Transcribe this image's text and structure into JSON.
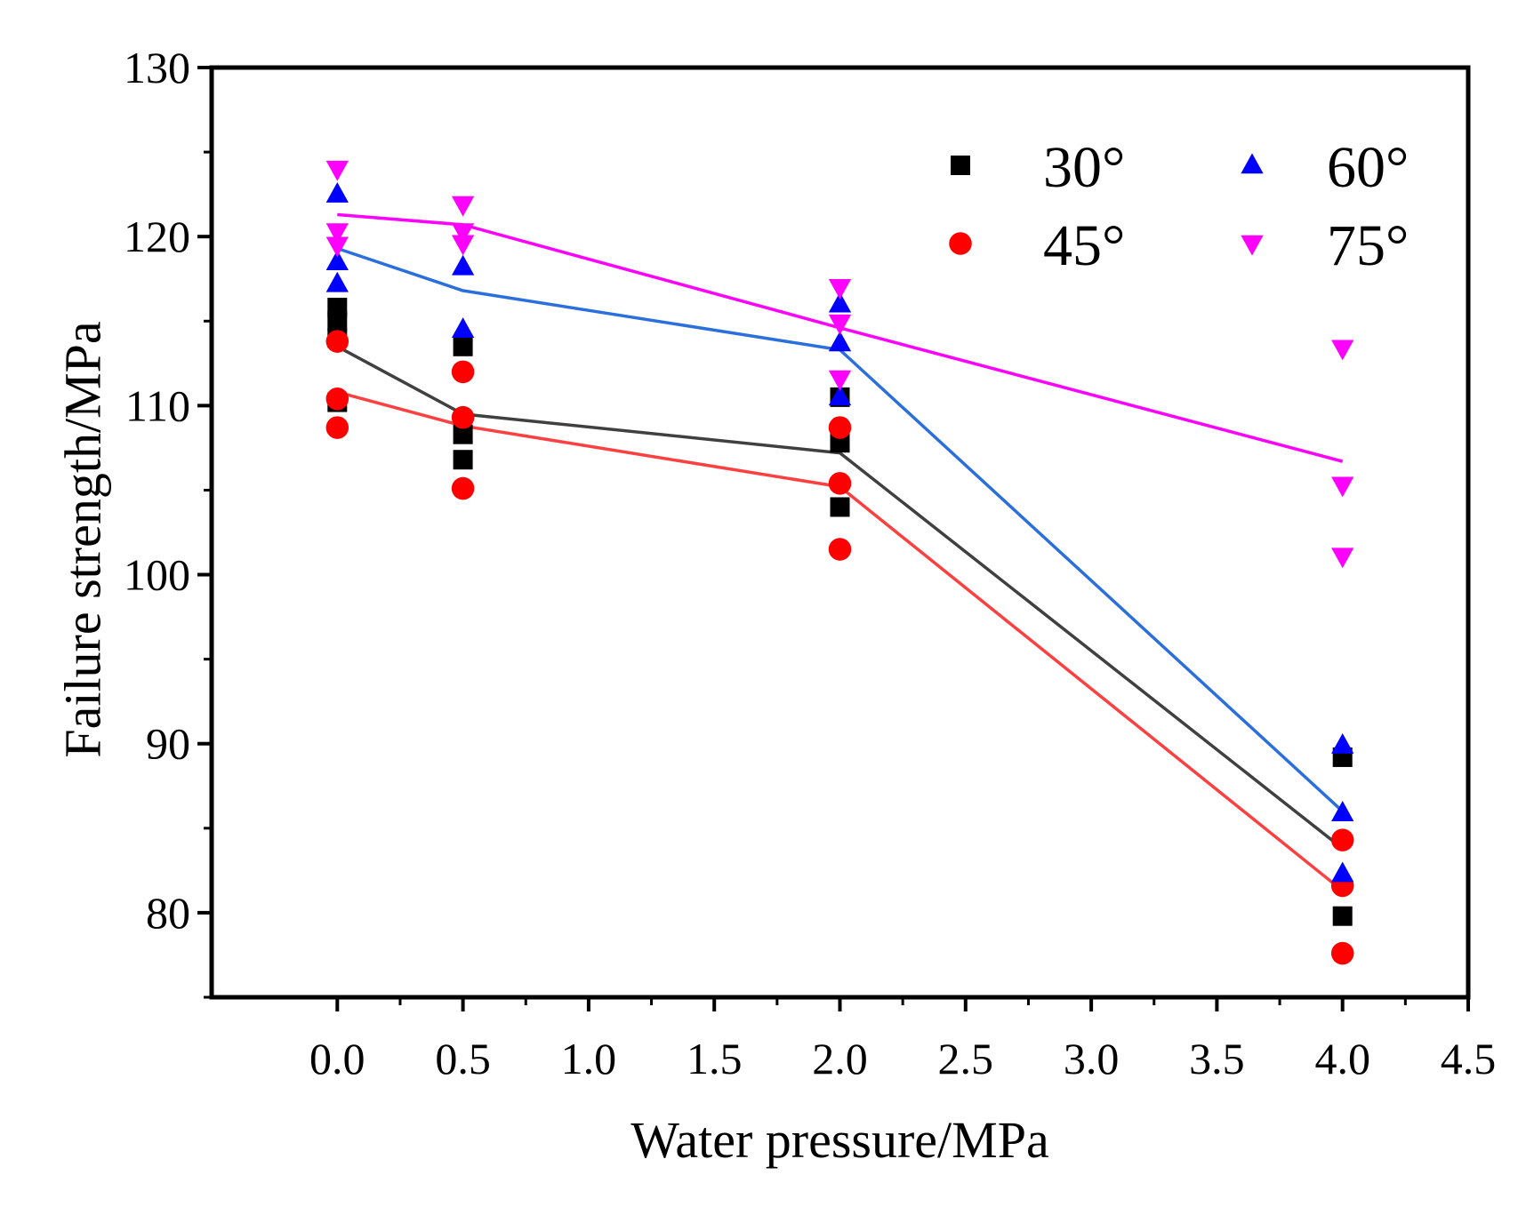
{
  "chart_data": {
    "type": "scatter",
    "title": "",
    "xlabel": "Water pressure/MPa",
    "ylabel": "Failure strength/MPa",
    "xlim": [
      -0.5,
      4.5
    ],
    "ylim": [
      75,
      130
    ],
    "x_ticks": [
      0.0,
      0.5,
      1.0,
      1.5,
      2.0,
      2.5,
      3.0,
      3.5,
      4.0,
      4.5
    ],
    "x_tick_labels": [
      "0.0",
      "0.5",
      "1.0",
      "1.5",
      "2.0",
      "2.5",
      "3.0",
      "3.5",
      "4.0",
      "4.5"
    ],
    "y_ticks": [
      80,
      90,
      100,
      110,
      120,
      130
    ],
    "y_tick_labels": [
      "80",
      "90",
      "100",
      "110",
      "120",
      "130"
    ],
    "grid": false,
    "legend_position": "top-right",
    "series": [
      {
        "name": "30°",
        "marker": "square",
        "color": "#000000",
        "line_color": "#404040",
        "points": [
          [
            0.0,
            115.8
          ],
          [
            0.0,
            115.0
          ],
          [
            0.0,
            114.0
          ],
          [
            0.0,
            110.2
          ],
          [
            0.5,
            113.5
          ],
          [
            0.5,
            108.3
          ],
          [
            0.5,
            106.8
          ],
          [
            2.0,
            110.5
          ],
          [
            2.0,
            107.8
          ],
          [
            2.0,
            104.0
          ],
          [
            4.0,
            89.2
          ],
          [
            4.0,
            79.8
          ]
        ],
        "fit_line": [
          [
            0.0,
            113.5
          ],
          [
            0.5,
            109.5
          ],
          [
            2.0,
            107.2
          ],
          [
            4.0,
            83.8
          ]
        ]
      },
      {
        "name": "45°",
        "marker": "circle",
        "color": "#ff0000",
        "line_color": "#ff4040",
        "points": [
          [
            0.0,
            113.8
          ],
          [
            0.0,
            110.4
          ],
          [
            0.0,
            108.7
          ],
          [
            0.5,
            112.0
          ],
          [
            0.5,
            109.3
          ],
          [
            0.5,
            105.1
          ],
          [
            2.0,
            108.7
          ],
          [
            2.0,
            105.4
          ],
          [
            2.0,
            101.5
          ],
          [
            4.0,
            84.3
          ],
          [
            4.0,
            81.6
          ],
          [
            4.0,
            77.6
          ]
        ],
        "fit_line": [
          [
            0.0,
            110.8
          ],
          [
            0.5,
            108.8
          ],
          [
            2.0,
            105.2
          ],
          [
            4.0,
            81.3
          ]
        ]
      },
      {
        "name": "60°",
        "marker": "triangle-up",
        "color": "#0000ff",
        "line_color": "#2a6fdb",
        "points": [
          [
            0.0,
            122.5
          ],
          [
            0.0,
            118.5
          ],
          [
            0.0,
            117.2
          ],
          [
            0.5,
            118.2
          ],
          [
            0.5,
            114.5
          ],
          [
            2.0,
            116.0
          ],
          [
            2.0,
            113.7
          ],
          [
            2.0,
            110.5
          ],
          [
            4.0,
            89.9
          ],
          [
            4.0,
            85.9
          ],
          [
            4.0,
            82.3
          ]
        ],
        "fit_line": [
          [
            0.0,
            119.3
          ],
          [
            0.5,
            116.8
          ],
          [
            2.0,
            113.3
          ],
          [
            4.0,
            86.0
          ]
        ]
      },
      {
        "name": "75°",
        "marker": "triangle-down",
        "color": "#ff00ff",
        "line_color": "#ff00ff",
        "points": [
          [
            0.0,
            124.0
          ],
          [
            0.0,
            120.3
          ],
          [
            0.0,
            119.5
          ],
          [
            0.5,
            121.9
          ],
          [
            0.5,
            120.3
          ],
          [
            0.5,
            119.6
          ],
          [
            2.0,
            117.0
          ],
          [
            2.0,
            114.9
          ],
          [
            2.0,
            111.6
          ],
          [
            4.0,
            113.4
          ],
          [
            4.0,
            105.3
          ],
          [
            4.0,
            101.1
          ]
        ],
        "fit_line": [
          [
            0.0,
            121.3
          ],
          [
            0.5,
            120.7
          ],
          [
            2.0,
            114.6
          ],
          [
            4.0,
            106.7
          ]
        ]
      }
    ]
  }
}
